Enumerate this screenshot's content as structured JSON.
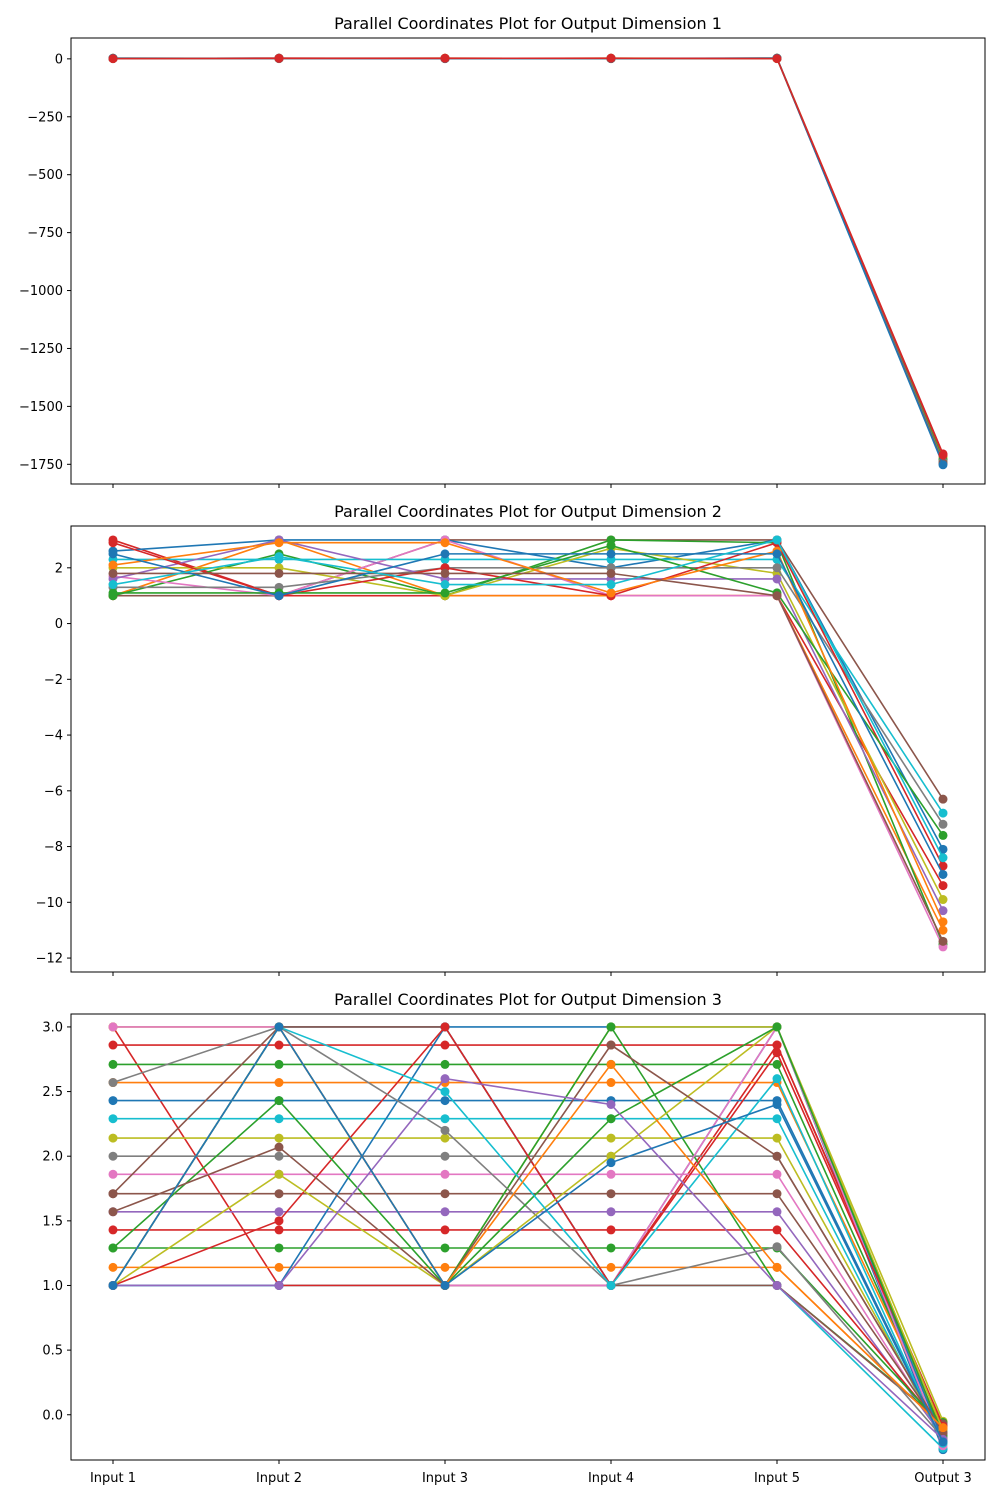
{
  "chart_data": [
    {
      "type": "line",
      "title": "Parallel Coordinates Plot for Output Dimension 1",
      "categories": [
        "Input 1",
        "Input 2",
        "Input 3",
        "Input 4",
        "Input 5",
        "Output 3"
      ],
      "show_x_tick_labels": false,
      "ylim": [
        -1835,
        90
      ],
      "yticks": [
        0,
        -250,
        -500,
        -750,
        -1000,
        -1250,
        -1500,
        -1750
      ],
      "grid": false,
      "series": [
        {
          "values": [
            1.0,
            3.0,
            1.0,
            2.0,
            3.0,
            -1705
          ],
          "color": "#d62728"
        },
        {
          "values": [
            2.0,
            1.0,
            3.0,
            1.0,
            2.0,
            -1715
          ],
          "color": "#ff7f0e"
        },
        {
          "values": [
            3.0,
            2.0,
            1.0,
            3.0,
            1.0,
            -1722
          ],
          "color": "#bcbd22"
        },
        {
          "values": [
            1.5,
            2.5,
            2.0,
            1.0,
            3.0,
            -1730
          ],
          "color": "#2ca02c"
        },
        {
          "values": [
            2.5,
            1.0,
            1.5,
            2.5,
            2.0,
            -1738
          ],
          "color": "#7f7f7f"
        },
        {
          "values": [
            1.2,
            3.0,
            2.8,
            1.2,
            1.5,
            -1745
          ],
          "color": "#8c564b"
        },
        {
          "values": [
            2.8,
            1.8,
            1.0,
            1.8,
            2.8,
            -1752
          ],
          "color": "#1f77b4"
        },
        {
          "values": [
            1.0,
            2.2,
            2.4,
            2.9,
            1.0,
            -1710
          ],
          "color": "#d62728"
        }
      ]
    },
    {
      "type": "line",
      "title": "Parallel Coordinates Plot for Output Dimension 2",
      "categories": [
        "Input 1",
        "Input 2",
        "Input 3",
        "Input 4",
        "Input 5",
        "Output 3"
      ],
      "show_x_tick_labels": false,
      "ylim": [
        -12.5,
        3.5
      ],
      "yticks": [
        2,
        0,
        -2,
        -4,
        -6,
        -8,
        -10,
        -12
      ],
      "grid": false,
      "series": [
        {
          "values": [
            3.0,
            1.0,
            1.0,
            1.0,
            1.0,
            -9.4
          ],
          "color": "#d62728"
        },
        {
          "values": [
            1.0,
            3.0,
            1.0,
            1.0,
            1.0,
            -11.0
          ],
          "color": "#ff7f0e"
        },
        {
          "values": [
            1.0,
            1.0,
            3.0,
            3.0,
            3.0,
            -6.3
          ],
          "color": "#8c564b"
        },
        {
          "values": [
            2.6,
            3.0,
            3.0,
            2.0,
            3.0,
            -8.1
          ],
          "color": "#1f77b4"
        },
        {
          "values": [
            1.0,
            2.5,
            1.0,
            3.0,
            2.9,
            -11.5
          ],
          "color": "#2ca02c"
        },
        {
          "values": [
            1.7,
            1.0,
            3.0,
            1.0,
            1.0,
            -11.6
          ],
          "color": "#e377c2"
        },
        {
          "values": [
            2.3,
            2.3,
            2.3,
            2.3,
            2.3,
            -6.8
          ],
          "color": "#17becf"
        },
        {
          "values": [
            2.0,
            2.0,
            1.0,
            2.7,
            1.8,
            -9.9
          ],
          "color": "#bcbd22"
        },
        {
          "values": [
            1.3,
            1.3,
            2.0,
            2.0,
            2.0,
            -7.2
          ],
          "color": "#7f7f7f"
        },
        {
          "values": [
            1.6,
            3.0,
            1.6,
            1.6,
            1.6,
            -10.3
          ],
          "color": "#9467bd"
        },
        {
          "values": [
            2.9,
            1.0,
            2.0,
            1.0,
            2.9,
            -8.7
          ],
          "color": "#d62728"
        },
        {
          "values": [
            1.1,
            1.1,
            1.1,
            2.8,
            1.1,
            -7.6
          ],
          "color": "#2ca02c"
        },
        {
          "values": [
            2.1,
            2.9,
            2.9,
            1.1,
            2.6,
            -10.7
          ],
          "color": "#ff7f0e"
        },
        {
          "values": [
            1.8,
            1.8,
            1.8,
            1.8,
            1.0,
            -11.4
          ],
          "color": "#8c564b"
        },
        {
          "values": [
            2.5,
            1.0,
            2.5,
            2.5,
            2.5,
            -9.0
          ],
          "color": "#1f77b4"
        },
        {
          "values": [
            1.4,
            2.4,
            1.4,
            1.4,
            3.0,
            -8.4
          ],
          "color": "#17becf"
        }
      ]
    },
    {
      "type": "line",
      "title": "Parallel Coordinates Plot for Output Dimension 3",
      "categories": [
        "Input 1",
        "Input 2",
        "Input 3",
        "Input 4",
        "Input 5",
        "Output 3"
      ],
      "show_x_tick_labels": true,
      "ylim": [
        -0.35,
        3.1
      ],
      "yticks": [
        3.0,
        2.5,
        2.0,
        1.5,
        1.0,
        0.5,
        0.0
      ],
      "ytick_labels": [
        "3.0",
        "2.5",
        "2.0",
        "1.5",
        "1.0",
        "0.5",
        "0.0"
      ],
      "grid": false,
      "series": [
        {
          "values": [
            1.0,
            3.0,
            3.0,
            3.0,
            3.0,
            -0.27
          ],
          "color": "#1f77b4"
        },
        {
          "values": [
            1.0,
            1.0,
            1.0,
            1.0,
            1.0,
            -0.26
          ],
          "color": "#17becf"
        },
        {
          "values": [
            3.0,
            1.0,
            1.0,
            1.0,
            2.86,
            -0.1
          ],
          "color": "#d62728"
        },
        {
          "values": [
            2.86,
            2.86,
            2.86,
            2.86,
            2.86,
            -0.08
          ],
          "color": "#d62728"
        },
        {
          "values": [
            2.71,
            2.71,
            2.71,
            2.71,
            2.71,
            -0.15
          ],
          "color": "#2ca02c"
        },
        {
          "values": [
            2.57,
            2.57,
            2.57,
            2.57,
            2.57,
            -0.12
          ],
          "color": "#ff7f0e"
        },
        {
          "values": [
            2.43,
            2.43,
            2.43,
            2.43,
            2.43,
            -0.2
          ],
          "color": "#1f77b4"
        },
        {
          "values": [
            2.29,
            2.29,
            2.29,
            2.29,
            2.29,
            -0.22
          ],
          "color": "#17becf"
        },
        {
          "values": [
            2.14,
            2.14,
            2.14,
            2.14,
            2.14,
            -0.18
          ],
          "color": "#bcbd22"
        },
        {
          "values": [
            2.0,
            2.0,
            2.0,
            2.0,
            2.0,
            -0.14
          ],
          "color": "#7f7f7f"
        },
        {
          "values": [
            1.86,
            1.86,
            1.86,
            1.86,
            1.86,
            -0.16
          ],
          "color": "#e377c2"
        },
        {
          "values": [
            1.71,
            1.71,
            1.71,
            1.71,
            1.71,
            -0.13
          ],
          "color": "#8c564b"
        },
        {
          "values": [
            1.57,
            1.57,
            1.57,
            1.57,
            1.57,
            -0.17
          ],
          "color": "#9467bd"
        },
        {
          "values": [
            1.43,
            1.43,
            1.43,
            1.43,
            1.43,
            -0.11
          ],
          "color": "#d62728"
        },
        {
          "values": [
            1.29,
            1.29,
            1.29,
            1.29,
            1.29,
            -0.09
          ],
          "color": "#2ca02c"
        },
        {
          "values": [
            1.14,
            1.14,
            1.14,
            1.14,
            1.14,
            -0.1
          ],
          "color": "#ff7f0e"
        },
        {
          "values": [
            3.0,
            3.0,
            1.0,
            3.0,
            3.0,
            -0.05
          ],
          "color": "#bcbd22"
        },
        {
          "values": [
            1.0,
            3.0,
            1.0,
            3.0,
            1.0,
            -0.06
          ],
          "color": "#2ca02c"
        },
        {
          "values": [
            1.71,
            3.0,
            3.0,
            1.0,
            1.0,
            -0.07
          ],
          "color": "#8c564b"
        },
        {
          "values": [
            1.0,
            1.0,
            3.0,
            1.0,
            3.0,
            -0.2
          ],
          "color": "#1f77b4"
        },
        {
          "values": [
            3.0,
            3.0,
            1.0,
            1.0,
            3.0,
            -0.24
          ],
          "color": "#e377c2"
        },
        {
          "values": [
            1.0,
            1.5,
            3.0,
            1.0,
            2.8,
            -0.09
          ],
          "color": "#d62728"
        },
        {
          "values": [
            2.57,
            3.0,
            2.2,
            1.0,
            1.3,
            -0.18
          ],
          "color": "#7f7f7f"
        },
        {
          "values": [
            1.0,
            1.86,
            1.0,
            2.0,
            3.0,
            -0.12
          ],
          "color": "#bcbd22"
        },
        {
          "values": [
            1.29,
            2.43,
            1.0,
            2.29,
            3.0,
            -0.16
          ],
          "color": "#2ca02c"
        },
        {
          "values": [
            1.0,
            3.0,
            2.5,
            1.0,
            2.6,
            -0.22
          ],
          "color": "#17becf"
        },
        {
          "values": [
            1.57,
            2.07,
            1.0,
            2.86,
            2.0,
            -0.14
          ],
          "color": "#8c564b"
        },
        {
          "values": [
            1.0,
            3.0,
            1.0,
            2.71,
            1.14,
            -0.1
          ],
          "color": "#ff7f0e"
        },
        {
          "values": [
            1.0,
            1.0,
            2.6,
            2.4,
            1.0,
            -0.19
          ],
          "color": "#9467bd"
        },
        {
          "values": [
            1.0,
            3.0,
            1.0,
            1.95,
            2.4,
            -0.21
          ],
          "color": "#1f77b4"
        }
      ]
    }
  ]
}
